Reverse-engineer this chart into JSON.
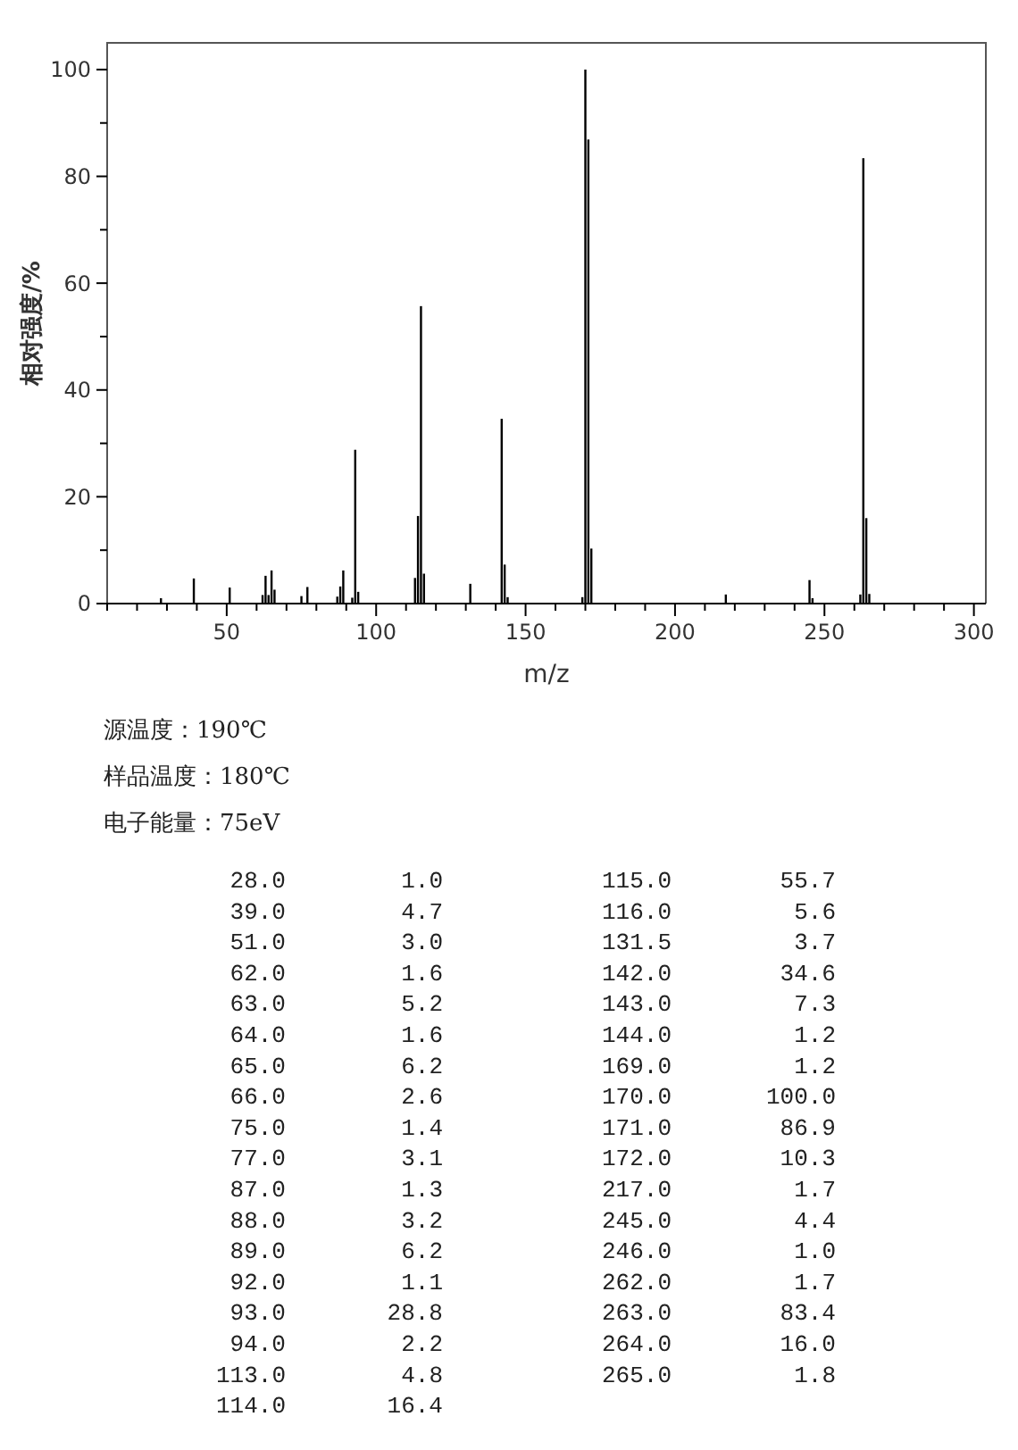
{
  "chart_data": [
    {
      "type": "bar",
      "xlabel": "m/z",
      "ylabel": "相对强度/%",
      "x": [
        28,
        39,
        51,
        62,
        63,
        64,
        65,
        66,
        75,
        77,
        87,
        88,
        89,
        92,
        93,
        94,
        113,
        114,
        115,
        116,
        131.5,
        142,
        143,
        144,
        169,
        170,
        171,
        172,
        217,
        245,
        246,
        262,
        263,
        264,
        265
      ],
      "values": [
        1.0,
        4.7,
        3.0,
        1.6,
        5.2,
        1.6,
        6.2,
        2.6,
        1.4,
        3.1,
        1.3,
        3.2,
        6.2,
        1.1,
        28.8,
        2.2,
        4.8,
        16.4,
        55.7,
        5.6,
        3.7,
        34.6,
        7.3,
        1.2,
        1.2,
        100.0,
        86.9,
        10.3,
        1.7,
        4.4,
        1.0,
        1.7,
        83.4,
        16.0,
        1.8
      ],
      "color": "#000000",
      "xlim": [
        10,
        304
      ],
      "ylim": [
        0,
        105
      ],
      "xticks": [
        {
          "value": 10,
          "label": null
        },
        {
          "value": 20,
          "label": null
        },
        {
          "value": 30,
          "label": null
        },
        {
          "value": 40,
          "label": null
        },
        50,
        {
          "value": 60,
          "label": null
        },
        {
          "value": 70,
          "label": null
        },
        {
          "value": 80,
          "label": null
        },
        {
          "value": 90,
          "label": null
        },
        100,
        {
          "value": 110,
          "label": null
        },
        {
          "value": 120,
          "label": null
        },
        {
          "value": 130,
          "label": null
        },
        {
          "value": 140,
          "label": null
        },
        150,
        {
          "value": 160,
          "label": null
        },
        {
          "value": 170,
          "label": null
        },
        {
          "value": 180,
          "label": null
        },
        {
          "value": 190,
          "label": null
        },
        200,
        {
          "value": 210,
          "label": null
        },
        {
          "value": 220,
          "label": null
        },
        {
          "value": 230,
          "label": null
        },
        {
          "value": 240,
          "label": null
        },
        250,
        {
          "value": 260,
          "label": null
        },
        {
          "value": 270,
          "label": null
        },
        {
          "value": 280,
          "label": null
        },
        {
          "value": 290,
          "label": null
        },
        300
      ],
      "yticks": [
        0,
        {
          "value": 10,
          "label": null
        },
        20,
        {
          "value": 30,
          "label": null
        },
        40,
        {
          "value": 50,
          "label": null
        },
        60,
        {
          "value": 70,
          "label": null
        },
        80,
        {
          "value": 90,
          "label": null
        },
        100
      ],
      "grid": false,
      "annotations": [
        "源温度：190℃",
        "样品温度：180℃",
        "电子能量：75eV"
      ]
    },
    {
      "type": "other",
      "annotations": [
        "28.0",
        "1.0",
        "39.0",
        "4.7",
        "51.0",
        "3.0",
        "62.0",
        "1.6",
        "63.0",
        "5.2",
        "64.0",
        "1.6",
        "65.0",
        "6.2",
        "66.0",
        "2.6",
        "75.0",
        "1.4",
        "77.0",
        "3.1",
        "87.0",
        "1.3",
        "88.0",
        "3.2",
        "89.0",
        "6.2",
        "92.0",
        "1.1",
        "93.0",
        "28.8",
        "94.0",
        "2.2",
        "113.0",
        "4.8",
        "114.0",
        "16.4",
        "115.0",
        "55.7",
        "116.0",
        "5.6",
        "131.5",
        "3.7",
        "142.0",
        "34.6",
        "143.0",
        "7.3",
        "144.0",
        "1.2",
        "169.0",
        "1.2",
        "170.0",
        "100.0",
        "171.0",
        "86.9",
        "172.0",
        "10.3",
        "217.0",
        "1.7",
        "245.0",
        "4.4",
        "246.0",
        "1.0",
        "262.0",
        "1.7",
        "263.0",
        "83.4",
        "264.0",
        "16.0",
        "265.0",
        "1.8"
      ]
    }
  ]
}
